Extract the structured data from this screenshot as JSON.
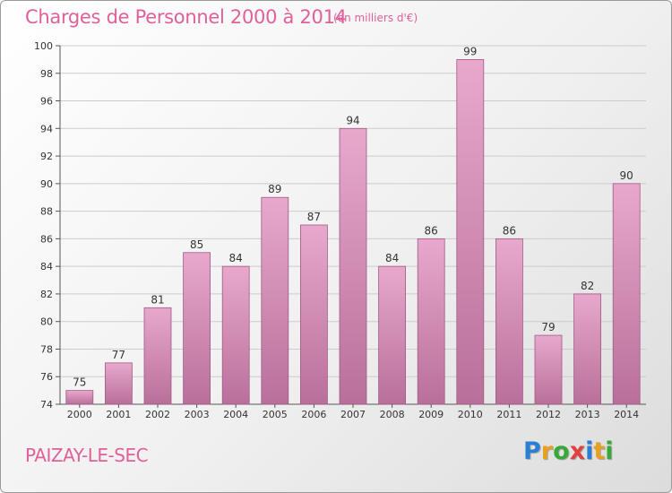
{
  "header": {
    "title": "Charges de Personnel 2000 à 2014",
    "subtitle": "(en milliers d'€)"
  },
  "footer": {
    "commune": "PAIZAY-LE-SEC",
    "logo": "Proxiti"
  },
  "colors": {
    "bar_top": "#e8a8cc",
    "bar_bottom": "#b8709a",
    "bar_border": "#a05a85",
    "title": "#e0609a",
    "grid": "#cccccc"
  },
  "chart_data": {
    "type": "bar",
    "title": "Charges de Personnel 2000 à 2014",
    "subtitle": "(en milliers d'€)",
    "categories": [
      "2000",
      "2001",
      "2002",
      "2003",
      "2004",
      "2005",
      "2006",
      "2007",
      "2008",
      "2009",
      "2010",
      "2011",
      "2012",
      "2013",
      "2014"
    ],
    "values": [
      75,
      77,
      81,
      85,
      84,
      89,
      87,
      94,
      84,
      86,
      99,
      86,
      79,
      82,
      90
    ],
    "ylim": [
      74,
      100
    ],
    "yticks": [
      74,
      76,
      78,
      80,
      82,
      84,
      86,
      88,
      90,
      92,
      94,
      96,
      98,
      100
    ],
    "xlabel": "",
    "ylabel": "",
    "grid": true,
    "legend": "none"
  }
}
